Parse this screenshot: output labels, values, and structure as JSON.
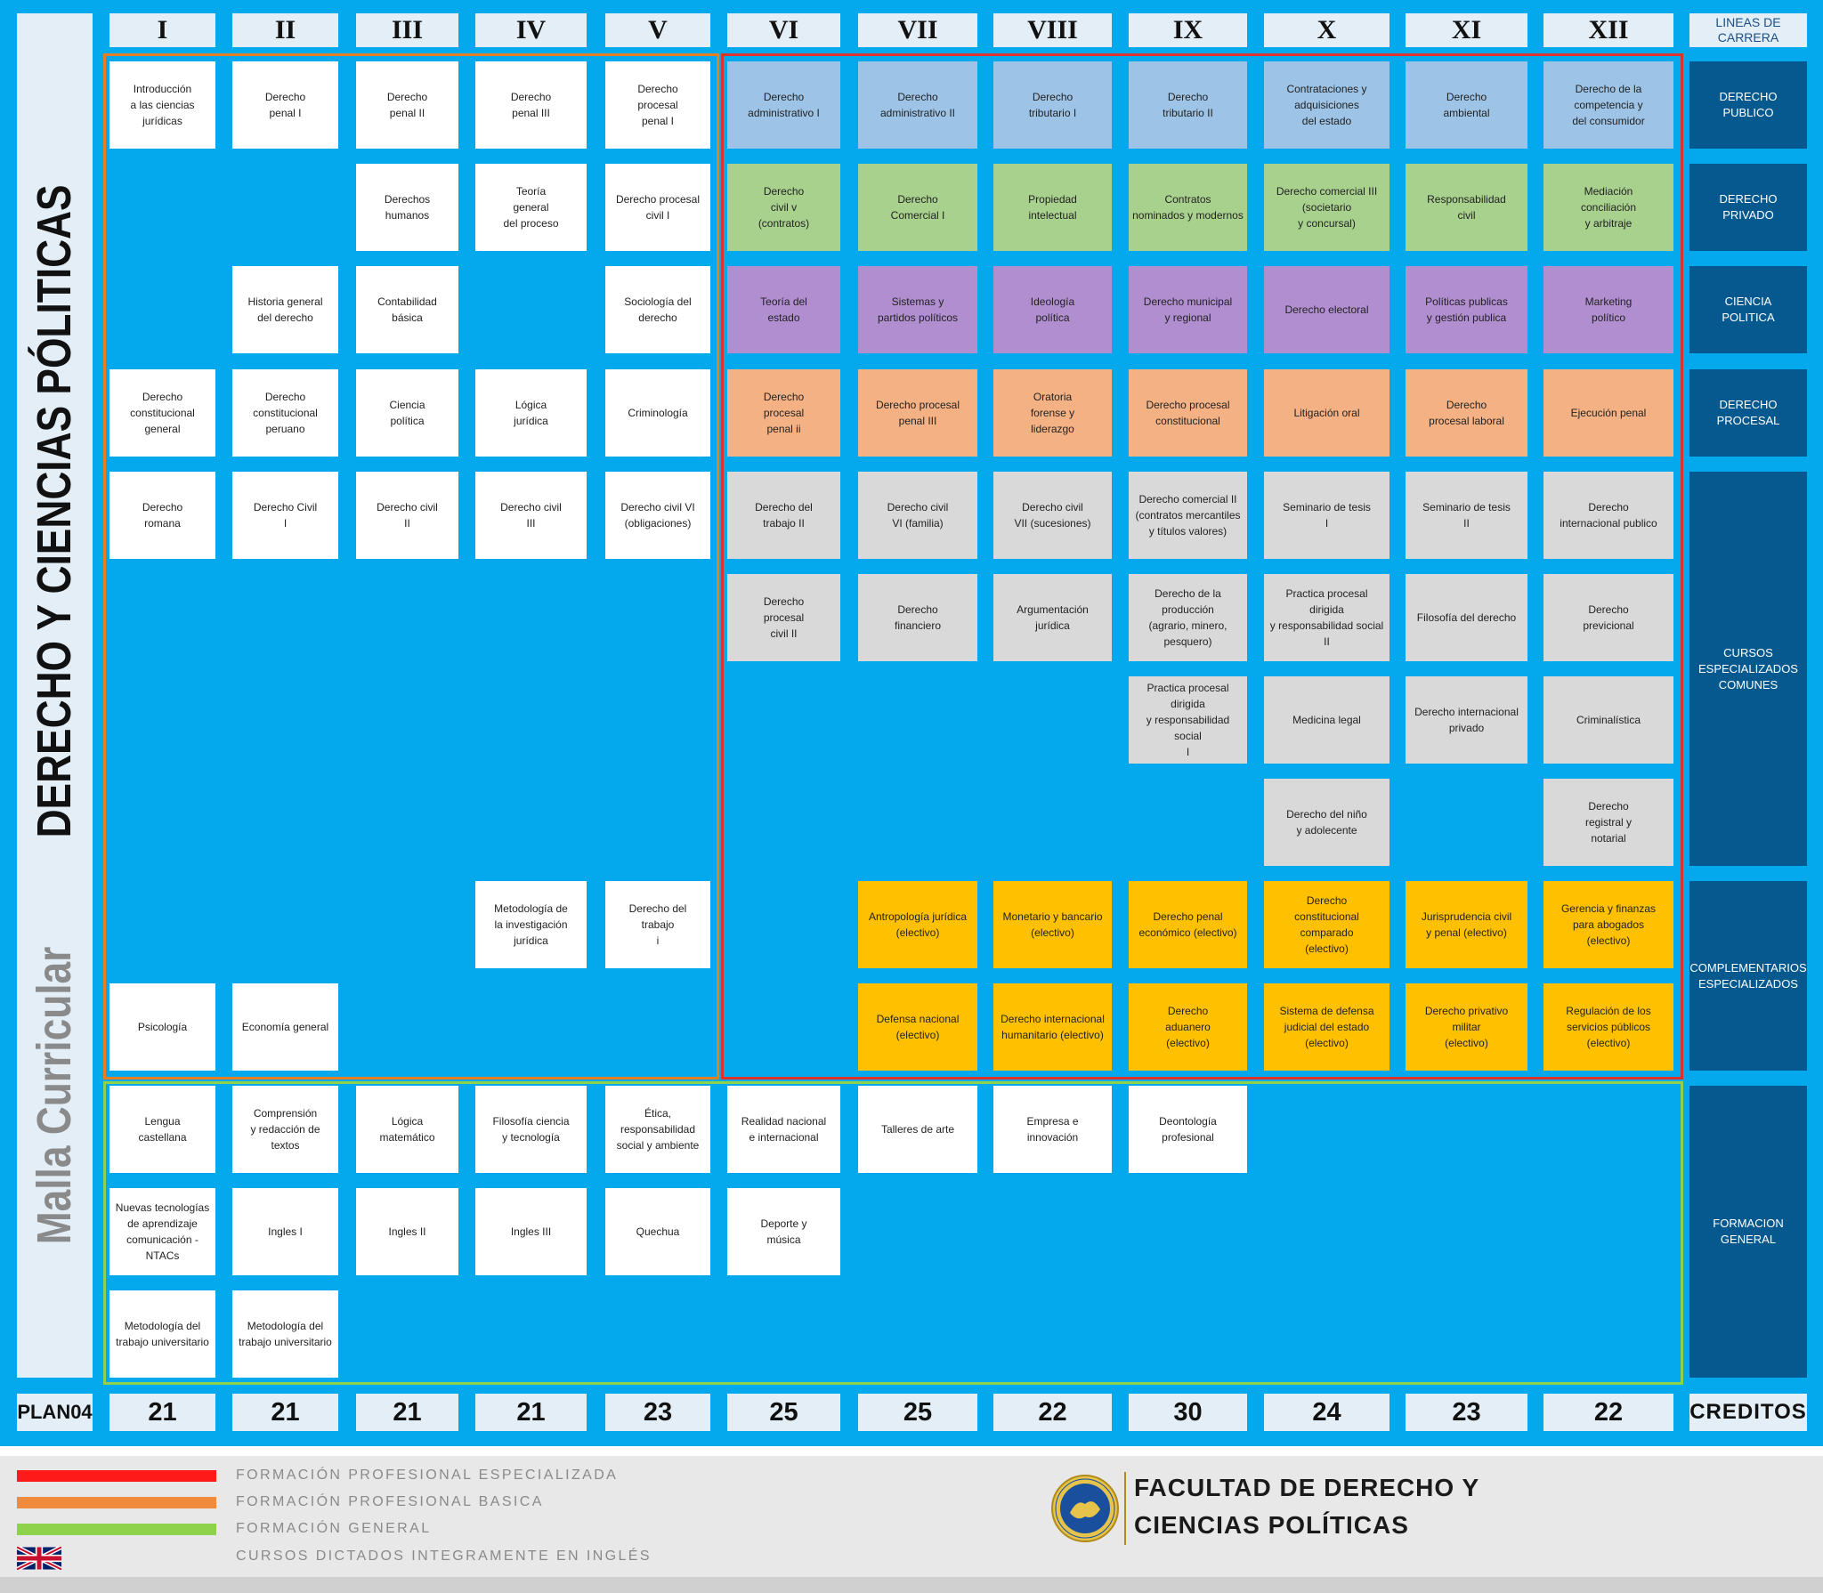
{
  "side": {
    "title_part1": "Malla Curricular",
    "title_part2": "DERECHO Y CIENCIAS PÓLITICAS",
    "plan": "PLAN04"
  },
  "cycles": [
    "I",
    "II",
    "III",
    "IV",
    "V",
    "VI",
    "VII",
    "VIII",
    "IX",
    "X",
    "XI",
    "XII"
  ],
  "credits": [
    "21",
    "21",
    "21",
    "21",
    "23",
    "25",
    "25",
    "22",
    "30",
    "24",
    "23",
    "22"
  ],
  "lines": {
    "header": "LINEAS DE\nCARRERA",
    "derecho_publico": "DERECHO\nPUBLICO",
    "derecho_privado": "DERECHO\nPRIVADO",
    "ciencia_politica": "CIENCIA\nPOLITICA",
    "derecho_procesal": "DERECHO\nPROCESAL",
    "cursos_especializados": "CURSOS\nESPECIALIZADOS\nCOMUNES",
    "complementarios": "COMPLEMENTARIOS\nESPECIALIZADOS",
    "formacion_general": "FORMACION\nGENERAL",
    "creditos": "CREDITOS"
  },
  "courses": [
    {
      "col": 0,
      "row": 0,
      "color": "w",
      "text": "Introducción\na las ciencias\njurídicas"
    },
    {
      "col": 1,
      "row": 0,
      "color": "w",
      "text": "Derecho\npenal I"
    },
    {
      "col": 2,
      "row": 0,
      "color": "w",
      "text": "Derecho\npenal II"
    },
    {
      "col": 3,
      "row": 0,
      "color": "w",
      "text": "Derecho\npenal III"
    },
    {
      "col": 4,
      "row": 0,
      "color": "w",
      "text": "Derecho\nprocesal\npenal I"
    },
    {
      "col": 5,
      "row": 0,
      "color": "b",
      "text": "Derecho\nadministrativo I"
    },
    {
      "col": 6,
      "row": 0,
      "color": "b",
      "text": "Derecho\nadministrativo II"
    },
    {
      "col": 7,
      "row": 0,
      "color": "b",
      "text": "Derecho\ntributario I"
    },
    {
      "col": 8,
      "row": 0,
      "color": "b",
      "text": "Derecho\ntributario II"
    },
    {
      "col": 9,
      "row": 0,
      "color": "b",
      "text": "Contrataciones y\nadquisiciones\ndel estado"
    },
    {
      "col": 10,
      "row": 0,
      "color": "b",
      "text": "Derecho\nambiental"
    },
    {
      "col": 11,
      "row": 0,
      "color": "b",
      "text": "Derecho de la\ncompetencia y\ndel consumidor"
    },
    {
      "col": 2,
      "row": 1,
      "color": "w",
      "text": "Derechos\nhumanos"
    },
    {
      "col": 3,
      "row": 1,
      "color": "w",
      "text": "Teoría\ngeneral\ndel proceso"
    },
    {
      "col": 4,
      "row": 1,
      "color": "w",
      "text": "Derecho procesal\ncivil I"
    },
    {
      "col": 5,
      "row": 1,
      "color": "g",
      "text": "Derecho\ncivil v\n(contratos)"
    },
    {
      "col": 6,
      "row": 1,
      "color": "g",
      "text": "Derecho\nComercial I"
    },
    {
      "col": 7,
      "row": 1,
      "color": "g",
      "text": "Propiedad\nintelectual"
    },
    {
      "col": 8,
      "row": 1,
      "color": "g",
      "text": "Contratos\nnominados y modernos"
    },
    {
      "col": 9,
      "row": 1,
      "color": "g",
      "text": "Derecho comercial III\n(societario\ny concursal)"
    },
    {
      "col": 10,
      "row": 1,
      "color": "g",
      "text": "Responsabilidad\ncivil"
    },
    {
      "col": 11,
      "row": 1,
      "color": "g",
      "text": "Mediación\nconciliación\ny arbitraje"
    },
    {
      "col": 1,
      "row": 2,
      "color": "w",
      "text": "Historia general\ndel derecho"
    },
    {
      "col": 2,
      "row": 2,
      "color": "w",
      "text": "Contabilidad\nbásica"
    },
    {
      "col": 4,
      "row": 2,
      "color": "w",
      "text": "Sociología del\nderecho"
    },
    {
      "col": 5,
      "row": 2,
      "color": "p",
      "text": "Teoría del\nestado"
    },
    {
      "col": 6,
      "row": 2,
      "color": "p",
      "text": "Sistemas y\npartidos políticos"
    },
    {
      "col": 7,
      "row": 2,
      "color": "p",
      "text": "Ideología\npolítica"
    },
    {
      "col": 8,
      "row": 2,
      "color": "p",
      "text": "Derecho municipal\ny regional"
    },
    {
      "col": 9,
      "row": 2,
      "color": "p",
      "text": "Derecho electoral"
    },
    {
      "col": 10,
      "row": 2,
      "color": "p",
      "text": "Políticas publicas\ny gestión publica"
    },
    {
      "col": 11,
      "row": 2,
      "color": "p",
      "text": "Marketing\npolítico"
    },
    {
      "col": 0,
      "row": 3,
      "color": "w",
      "text": "Derecho\nconstitucional\ngeneral"
    },
    {
      "col": 1,
      "row": 3,
      "color": "w",
      "text": "Derecho\nconstitucional\nperuano"
    },
    {
      "col": 2,
      "row": 3,
      "color": "w",
      "text": "Ciencia\npolítica"
    },
    {
      "col": 3,
      "row": 3,
      "color": "w",
      "text": "Lógica\njurídica"
    },
    {
      "col": 4,
      "row": 3,
      "color": "w",
      "text": "Criminología"
    },
    {
      "col": 5,
      "row": 3,
      "color": "o",
      "text": "Derecho\nprocesal\npenal ii"
    },
    {
      "col": 6,
      "row": 3,
      "color": "o",
      "text": "Derecho procesal\npenal III"
    },
    {
      "col": 7,
      "row": 3,
      "color": "o",
      "text": "Oratoria\nforense y\nliderazgo"
    },
    {
      "col": 8,
      "row": 3,
      "color": "o",
      "text": "Derecho procesal\nconstitucional"
    },
    {
      "col": 9,
      "row": 3,
      "color": "o",
      "text": "Litigación oral"
    },
    {
      "col": 10,
      "row": 3,
      "color": "o",
      "text": "Derecho\nprocesal laboral"
    },
    {
      "col": 11,
      "row": 3,
      "color": "o",
      "text": "Ejecución penal"
    },
    {
      "col": 0,
      "row": 4,
      "color": "w",
      "text": "Derecho\nromana"
    },
    {
      "col": 1,
      "row": 4,
      "color": "w",
      "text": "Derecho Civil\nI"
    },
    {
      "col": 2,
      "row": 4,
      "color": "w",
      "text": "Derecho civil\nII"
    },
    {
      "col": 3,
      "row": 4,
      "color": "w",
      "text": "Derecho civil\nIII"
    },
    {
      "col": 4,
      "row": 4,
      "color": "w",
      "text": "Derecho civil VI\n(obligaciones)"
    },
    {
      "col": 5,
      "row": 4,
      "color": "gr",
      "text": "Derecho del\ntrabajo II"
    },
    {
      "col": 6,
      "row": 4,
      "color": "gr",
      "text": "Derecho civil\nVI (familia)"
    },
    {
      "col": 7,
      "row": 4,
      "color": "gr",
      "text": "Derecho civil\nVII (sucesiones)"
    },
    {
      "col": 8,
      "row": 4,
      "color": "gr",
      "text": "Derecho comercial II\n(contratos mercantiles\ny títulos valores)"
    },
    {
      "col": 9,
      "row": 4,
      "color": "gr",
      "text": "Seminario de tesis\nI"
    },
    {
      "col": 10,
      "row": 4,
      "color": "gr",
      "text": "Seminario de tesis\nII"
    },
    {
      "col": 11,
      "row": 4,
      "color": "gr",
      "text": "Derecho\ninternacional publico"
    },
    {
      "col": 5,
      "row": 5,
      "color": "gr",
      "text": "Derecho\nprocesal\ncivil II"
    },
    {
      "col": 6,
      "row": 5,
      "color": "gr",
      "text": "Derecho\nfinanciero"
    },
    {
      "col": 7,
      "row": 5,
      "color": "gr",
      "text": "Argumentación\njurídica"
    },
    {
      "col": 8,
      "row": 5,
      "color": "gr",
      "text": "Derecho de la\nproducción\n(agrario, minero,\npesquero)"
    },
    {
      "col": 9,
      "row": 5,
      "color": "gr",
      "text": "Practica procesal\ndirigida\ny responsabilidad social II"
    },
    {
      "col": 10,
      "row": 5,
      "color": "gr",
      "text": "Filosofía del derecho"
    },
    {
      "col": 11,
      "row": 5,
      "color": "gr",
      "text": "Derecho\nprevicional"
    },
    {
      "col": 8,
      "row": 6,
      "color": "gr",
      "text": "Practica procesal\ndirigida\ny responsabilidad social\nI"
    },
    {
      "col": 9,
      "row": 6,
      "color": "gr",
      "text": "Medicina legal"
    },
    {
      "col": 10,
      "row": 6,
      "color": "gr",
      "text": "Derecho internacional\nprivado"
    },
    {
      "col": 11,
      "row": 6,
      "color": "gr",
      "text": "Criminalística"
    },
    {
      "col": 9,
      "row": 7,
      "color": "gr",
      "text": "Derecho del niño\ny adolecente"
    },
    {
      "col": 11,
      "row": 7,
      "color": "gr",
      "text": "Derecho\nregistral y\nnotarial"
    },
    {
      "col": 3,
      "row": 8,
      "color": "w",
      "text": "Metodología de\nla investigación\njurídica"
    },
    {
      "col": 4,
      "row": 8,
      "color": "w",
      "text": "Derecho del\ntrabajo\ni"
    },
    {
      "col": 6,
      "row": 8,
      "color": "y",
      "text": "Antropología jurídica\n(electivo)"
    },
    {
      "col": 7,
      "row": 8,
      "color": "y",
      "text": "Monetario y bancario\n(electivo)"
    },
    {
      "col": 8,
      "row": 8,
      "color": "y",
      "text": "Derecho penal\neconómico (electivo)"
    },
    {
      "col": 9,
      "row": 8,
      "color": "y",
      "text": "Derecho\nconstitucional\ncomparado\n(electivo)"
    },
    {
      "col": 10,
      "row": 8,
      "color": "y",
      "text": "Jurisprudencia civil\ny penal (electivo)"
    },
    {
      "col": 11,
      "row": 8,
      "color": "y",
      "text": "Gerencia y finanzas\npara abogados\n(electivo)"
    },
    {
      "col": 0,
      "row": 9,
      "color": "w",
      "text": "Psicología"
    },
    {
      "col": 1,
      "row": 9,
      "color": "w",
      "text": "Economía general"
    },
    {
      "col": 6,
      "row": 9,
      "color": "y",
      "text": "Defensa nacional\n(electivo)"
    },
    {
      "col": 7,
      "row": 9,
      "color": "y",
      "text": "Derecho internacional\nhumanitario (electivo)"
    },
    {
      "col": 8,
      "row": 9,
      "color": "y",
      "text": "Derecho\naduanero\n(electivo)"
    },
    {
      "col": 9,
      "row": 9,
      "color": "y",
      "text": "Sistema de defensa\njudicial del estado\n(electivo)"
    },
    {
      "col": 10,
      "row": 9,
      "color": "y",
      "text": "Derecho privativo\nmilitar\n(electivo)"
    },
    {
      "col": 11,
      "row": 9,
      "color": "y",
      "text": "Regulación de los\nservicios públicos\n(electivo)"
    },
    {
      "col": 0,
      "row": 10,
      "color": "w",
      "text": "Lengua\ncastellana"
    },
    {
      "col": 1,
      "row": 10,
      "color": "w",
      "text": "Comprensión\ny redacción de textos"
    },
    {
      "col": 2,
      "row": 10,
      "color": "w",
      "text": "Lógica\nmatemático"
    },
    {
      "col": 3,
      "row": 10,
      "color": "w",
      "text": "Filosofía ciencia\ny tecnología"
    },
    {
      "col": 4,
      "row": 10,
      "color": "w",
      "text": "Ética,\nresponsabilidad\nsocial y ambiente"
    },
    {
      "col": 5,
      "row": 10,
      "color": "w",
      "text": "Realidad nacional\ne internacional"
    },
    {
      "col": 6,
      "row": 10,
      "color": "w",
      "text": "Talleres de arte"
    },
    {
      "col": 7,
      "row": 10,
      "color": "w",
      "text": "Empresa e\ninnovación"
    },
    {
      "col": 8,
      "row": 10,
      "color": "w",
      "text": "Deontología\nprofesional"
    },
    {
      "col": 0,
      "row": 11,
      "color": "w",
      "text": "Nuevas tecnologías\nde aprendizaje\ncomunicación -\nNTACs"
    },
    {
      "col": 1,
      "row": 11,
      "color": "w",
      "text": "Ingles I"
    },
    {
      "col": 2,
      "row": 11,
      "color": "w",
      "text": "Ingles II"
    },
    {
      "col": 3,
      "row": 11,
      "color": "w",
      "text": "Ingles III"
    },
    {
      "col": 4,
      "row": 11,
      "color": "w",
      "text": "Quechua"
    },
    {
      "col": 5,
      "row": 11,
      "color": "w",
      "text": "Deporte y\nmúsica"
    },
    {
      "col": 0,
      "row": 12,
      "color": "w",
      "text": "Metodología del\ntrabajo universitario"
    },
    {
      "col": 1,
      "row": 12,
      "color": "w",
      "text": "Metodología del\ntrabajo universitario"
    }
  ],
  "legend": {
    "items": [
      {
        "color": "#ff1a1a",
        "label": "FORMACIÓN PROFESIONAL ESPECIALIZADA"
      },
      {
        "color": "#f08a3c",
        "label": "FORMACIÓN PROFESIONAL BASICA"
      },
      {
        "color": "#8ed14a",
        "label": "FORMACIÓN GENERAL"
      }
    ],
    "english_label": "CURSOS DICTADOS INTEGRAMENTE EN INGLÉS",
    "faculty_line1": "FACULTAD DE DERECHO Y",
    "faculty_line2": "CIENCIAS POLÍTICAS"
  },
  "colors": {
    "background": "#03a9ec",
    "specialized_border": "#d9342b",
    "basic_border": "#e67e22",
    "general_border": "#8ed14a"
  }
}
